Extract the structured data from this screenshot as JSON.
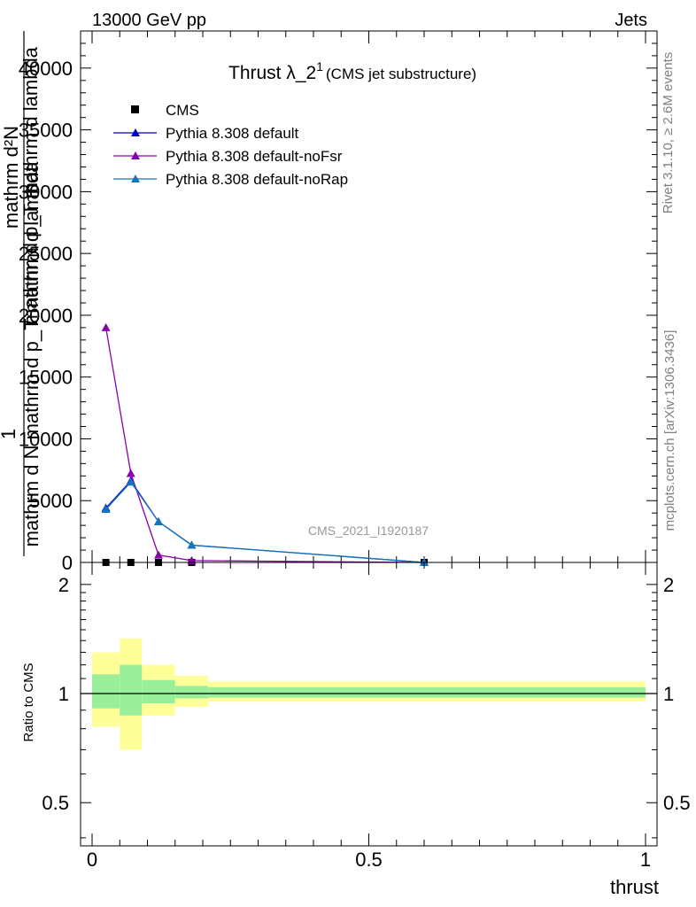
{
  "header": {
    "left": "13000 GeV pp",
    "right": "Jets"
  },
  "side_text": {
    "rivet": "Rivet 3.1.10, ≥ 2.6M events",
    "site": "mcplots.cern.ch [arXiv:1306.3436]"
  },
  "watermark": "CMS_2021_I1920187",
  "chart_data": [
    {
      "type": "line",
      "title_main": "Thrust λ_2",
      "title_sup": "1",
      "title_sub": "(CMS jet substructure)",
      "ylabel_top": "1",
      "ylabel_num": "mathrm d²N",
      "ylabel_den": "mathrm d N  mathrm d p_T mathrm d lambda",
      "ylabel_raw": [
        "mathrm d²N",
        "mathrm d p_T mathrm d lambda",
        "mathrm d N  mathrm d p_T mathrm d lambda"
      ],
      "xlim": [
        0,
        1
      ],
      "ylim": [
        0,
        43000
      ],
      "yticks": [
        0,
        5000,
        10000,
        15000,
        20000,
        25000,
        30000,
        35000,
        40000
      ],
      "ytick_labels": [
        "0",
        "5000",
        "10000",
        "15000",
        "20000",
        "25000",
        "30000",
        "35000",
        "40000"
      ],
      "legend_position": "top-left",
      "series": [
        {
          "name": "CMS",
          "color": "#000000",
          "marker": "square",
          "x": [
            0.025,
            0.07,
            0.12,
            0.18,
            0.6
          ],
          "y": [
            0,
            0,
            0,
            0,
            0
          ]
        },
        {
          "name": "Pythia 8.308 default",
          "color": "#0000cc",
          "marker": "triangle",
          "x": [
            0.025,
            0.07,
            0.12,
            0.18,
            0.6
          ],
          "y": [
            4400,
            6600,
            3300,
            1400,
            0
          ]
        },
        {
          "name": "Pythia 8.308 default-noFsr",
          "color": "#8800aa",
          "marker": "triangle",
          "x": [
            0.025,
            0.07,
            0.12,
            0.18,
            0.6
          ],
          "y": [
            19000,
            7200,
            600,
            150,
            0
          ]
        },
        {
          "name": "Pythia 8.308 default-noRap",
          "color": "#1177bb",
          "marker": "triangle",
          "x": [
            0.025,
            0.07,
            0.12,
            0.18,
            0.6
          ],
          "y": [
            4300,
            6500,
            3300,
            1400,
            0
          ]
        }
      ]
    },
    {
      "type": "area",
      "ylabel": "Ratio to CMS",
      "xlabel": "thrust",
      "xlim": [
        0,
        1
      ],
      "xticks": [
        0,
        0.5,
        1
      ],
      "xtick_labels": [
        "0",
        "0.5",
        "1"
      ],
      "ylim": [
        0.38,
        2.3
      ],
      "yticks": [
        0.5,
        1,
        2
      ],
      "ytick_labels": [
        "0.5",
        "1",
        "2"
      ],
      "reference_line": 1,
      "bins": [
        {
          "lo": 0.0,
          "hi": 0.05,
          "stat_lo": 0.91,
          "stat_hi": 1.13,
          "tot_lo": 0.81,
          "tot_hi": 1.3
        },
        {
          "lo": 0.05,
          "hi": 0.09,
          "stat_lo": 0.87,
          "stat_hi": 1.2,
          "tot_lo": 0.7,
          "tot_hi": 1.42
        },
        {
          "lo": 0.09,
          "hi": 0.15,
          "stat_lo": 0.94,
          "stat_hi": 1.09,
          "tot_lo": 0.87,
          "tot_hi": 1.2
        },
        {
          "lo": 0.15,
          "hi": 0.21,
          "stat_lo": 0.97,
          "stat_hi": 1.05,
          "tot_lo": 0.92,
          "tot_hi": 1.12
        },
        {
          "lo": 0.21,
          "hi": 1.0,
          "stat_lo": 0.975,
          "stat_hi": 1.04,
          "tot_lo": 0.95,
          "tot_hi": 1.08
        }
      ],
      "colors": {
        "stat": "#99ee99",
        "total": "#ffff99"
      }
    }
  ]
}
